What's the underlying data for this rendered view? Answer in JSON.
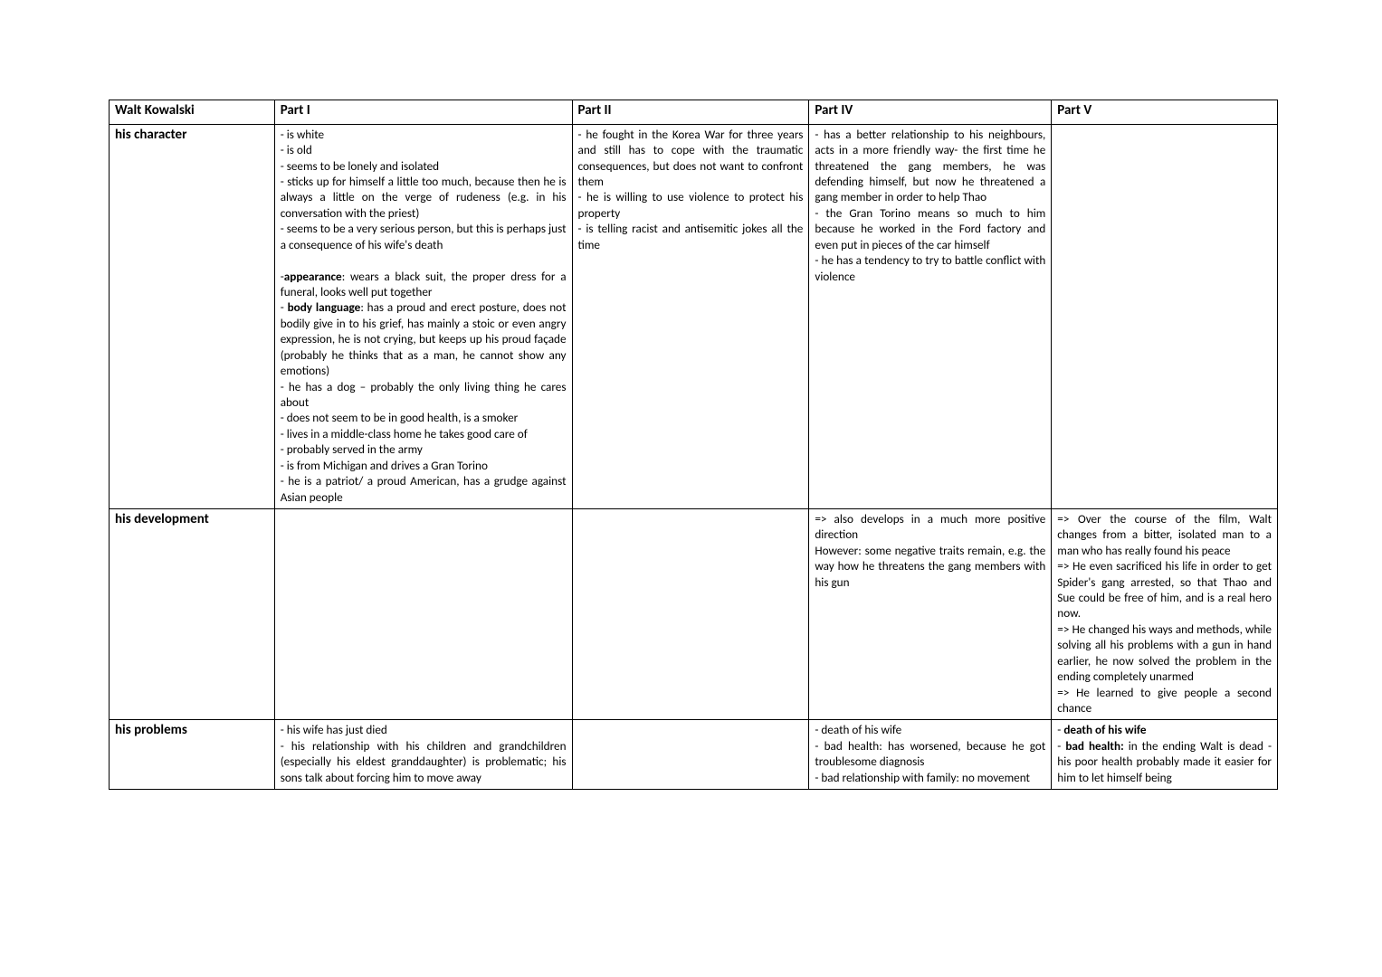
{
  "columns": [
    "Walt Kowalski",
    "Part I",
    "Part II",
    "Part IV",
    "Part V"
  ],
  "rows": [
    {
      "label": "his character",
      "part1": "- is white\n- is old\n- seems to be lonely and isolated\n- sticks up for himself a little too much, because then he is always a little on the verge of rudeness (e.g. in his conversation with the priest)\n- seems to be a very serious person, but this is perhaps just a consequence of his wife's death\n\n-<b>appearance</b>: wears a black suit, the proper dress for a funeral, looks well put together\n- <b>body language</b>: has a proud and erect posture, does not bodily give in to his grief, has mainly a stoic or even angry expression, he is not crying, but keeps up his proud façade (probably he thinks that as a man, he cannot show any emotions)\n- he has a dog – probably the only living thing he cares about\n- does not seem to be in good health, is a smoker\n- lives in a middle-class home he takes good care of\n- probably served in the army\n- is from Michigan and drives a Gran Torino\n- he is a patriot/ a proud American, has a grudge against Asian people",
      "part2": "- he fought in the Korea War for three years and still has to cope with the traumatic consequences, but does not want to confront them\n- he is willing to use violence to protect his property\n- is telling racist and antisemitic jokes all the time",
      "part4": "- has a better relationship to his neighbours, acts in a more friendly way- the first time he threatened the gang members, he was defending himself, but now he threatened a gang member in order to help Thao\n- the Gran Torino means so much to him because he worked in the Ford factory and even put in pieces of the car himself\n- he has a tendency to try to battle conflict with violence",
      "part5": ""
    },
    {
      "label": "his development",
      "part1": "",
      "part2": "",
      "part4": "=> also develops in a much more positive direction\nHowever: some negative traits remain, e.g. the way how he threatens the gang members with his gun",
      "part5": "=> Over the course of the film, Walt changes from a bitter, isolated man to a man who has really found his peace\n=> He even sacrificed his life in order to get Spider's gang arrested, so that Thao and Sue could be free of him, and is a real hero now.\n=> He changed his ways and methods, while solving all his problems with a gun in hand earlier, he now solved the problem in the ending completely unarmed\n=> He learned to give people a second chance"
    },
    {
      "label": "his problems",
      "part1": "- his wife has just died\n- his relationship with his children and grandchildren (especially his eldest granddaughter) is problematic; his sons talk about forcing him to move away",
      "part2": "",
      "part4": "- death of his wife\n- bad health: has worsened, because he got troublesome diagnosis\n- bad relationship with family: no movement",
      "part5": "- <b>death of his wife</b>\n- <b>bad health:</b> in the ending Walt is dead - his poor health probably made it easier for him to let himself being"
    }
  ]
}
